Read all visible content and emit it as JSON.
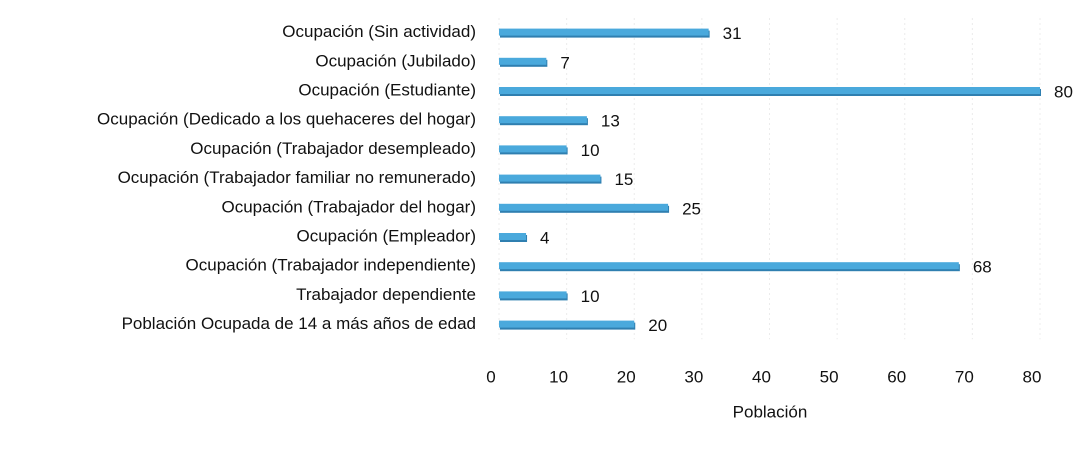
{
  "chart_data": {
    "type": "hbar",
    "categories": [
      "Ocupación (Sin actividad)",
      "Ocupación (Jubilado)",
      "Ocupación (Estudiante)",
      "Ocupación (Dedicado a los quehaceres del hogar)",
      "Ocupación (Trabajador desempleado)",
      "Ocupación (Trabajador familiar no remunerado)",
      "Ocupación (Trabajador del hogar)",
      "Ocupación (Empleador)",
      "Ocupación (Trabajador independiente)",
      "Trabajador dependiente",
      "Población Ocupada de 14 a más años de edad"
    ],
    "values": [
      31,
      7,
      80,
      13,
      10,
      15,
      25,
      4,
      68,
      10,
      20
    ],
    "color": "#4aa9dc",
    "xlabel": "Población",
    "xlim": [
      0,
      80
    ],
    "xticks": [
      0,
      10,
      20,
      30,
      40,
      50,
      60,
      70,
      80
    ],
    "grid": true
  }
}
